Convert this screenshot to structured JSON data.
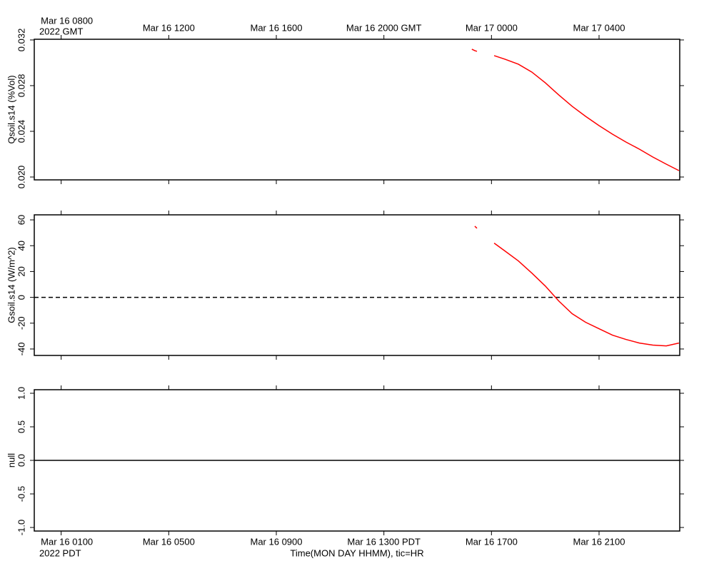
{
  "chart_data": [
    {
      "type": "line",
      "ylabel": "Qsoil.s14 (%Vol)",
      "x": [
        23.27,
        23.38,
        23.46,
        23.8,
        24.1,
        24.5,
        25,
        25.5,
        26,
        26.5,
        27,
        27.5,
        28,
        28.5,
        29,
        29.5,
        30,
        30.5,
        30.97
      ],
      "values": [
        0.031188,
        0.031063,
        0.031,
        null,
        0.030625,
        0.030313,
        0.029875,
        0.029188,
        0.02825,
        0.027188,
        0.026188,
        0.025313,
        0.0245,
        0.02375,
        0.023063,
        0.022438,
        0.02175,
        0.021125,
        0.020563
      ],
      "color": "#ff0000",
      "xlim": [
        7,
        31
      ],
      "xticks": [
        {
          "value": 8,
          "label": "Mar 16 0800"
        },
        {
          "value": 12,
          "label": "Mar 16 1200"
        },
        {
          "value": 16,
          "label": "Mar 16 1600"
        },
        {
          "value": 20,
          "label": "Mar 16 2000 GMT"
        },
        {
          "value": 24,
          "label": "Mar 17 0000"
        },
        {
          "value": 28,
          "label": "Mar 17 0400"
        }
      ],
      "xtick_position": "top",
      "xtick_sublabel": "2022 GMT",
      "ylim": [
        0.01975,
        0.03206
      ],
      "yticks": [
        {
          "value": 0.02,
          "label": "0.020"
        },
        0.024,
        0.028,
        0.032
      ]
    },
    {
      "type": "line",
      "ylabel": "Gsoil.s14 (W/m^2)",
      "x": [
        23.27,
        23.38,
        23.46,
        23.8,
        24.1,
        24.5,
        25,
        25.5,
        26,
        26.5,
        27,
        27.5,
        28,
        28.5,
        29,
        29.5,
        30,
        30.5,
        30.97
      ],
      "values": [
        null,
        55.1,
        53.5,
        null,
        42,
        35.9,
        28.2,
        18.8,
        8.8,
        -2.8,
        -12.7,
        -19.3,
        -24.3,
        -29.3,
        -32.6,
        -35.4,
        -37,
        -37.6,
        -35.4
      ],
      "color": "#ff0000",
      "xlim": [
        7,
        31
      ],
      "ylim": [
        -45,
        63.9
      ],
      "yticks": [
        -40,
        -20,
        0,
        20,
        40,
        60
      ],
      "hline": 0,
      "hline_style": "dashed"
    },
    {
      "type": "line",
      "ylabel": "null",
      "x": [],
      "values": [],
      "color": "#ff0000",
      "xlim": [
        7,
        31
      ],
      "xticks": [
        {
          "value": 8,
          "label": "Mar 16 0100"
        },
        {
          "value": 12,
          "label": "Mar 16 0500"
        },
        {
          "value": 16,
          "label": "Mar 16 0900"
        },
        {
          "value": 20,
          "label": "Mar 16 1300 PDT"
        },
        {
          "value": 24,
          "label": "Mar 16 1700"
        },
        {
          "value": 28,
          "label": "Mar 16 2100"
        }
      ],
      "xtick_position": "bottom",
      "xtick_sublabel": "2022 PDT",
      "xlabel": "Time(MON DAY HHMM), tic=HR",
      "ylim": [
        -1.053,
        1.053
      ],
      "yticks": [
        {
          "value": -1,
          "label": "-1.0"
        },
        {
          "value": -0.5,
          "label": "-0.5"
        },
        {
          "value": 0,
          "label": "0.0"
        },
        {
          "value": 0.5,
          "label": "0.5"
        },
        {
          "value": 1,
          "label": "1.0"
        }
      ],
      "hline": 0,
      "hline_style": "solid"
    }
  ]
}
